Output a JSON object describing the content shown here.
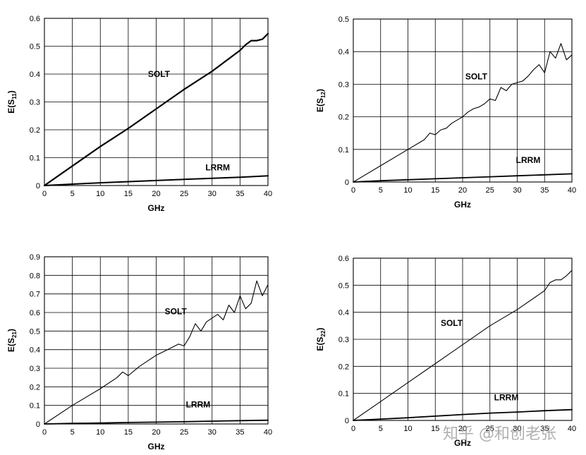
{
  "watermark": "知乎 @和创老张",
  "chart_data": [
    {
      "type": "line",
      "ylabel": "E(S11)",
      "xlabel": "GHz",
      "xlim": [
        0,
        40
      ],
      "ylim": [
        0,
        0.6
      ],
      "xticks": [
        "0",
        "5",
        "10",
        "15",
        "20",
        "25",
        "30",
        "35",
        "40"
      ],
      "yticks": [
        "0",
        "0.1",
        "0.2",
        "0.3",
        "0.4",
        "0.5",
        "0.6"
      ],
      "grid": true,
      "series": [
        {
          "name": "SOLT",
          "color": "#000000",
          "x": [
            0,
            5,
            10,
            15,
            20,
            25,
            30,
            35,
            36,
            37,
            38,
            39,
            40
          ],
          "y": [
            0,
            0.07,
            0.14,
            0.205,
            0.275,
            0.345,
            0.41,
            0.485,
            0.505,
            0.52,
            0.52,
            0.525,
            0.545
          ]
        },
        {
          "name": "LRRM",
          "color": "#000000",
          "x": [
            0,
            5,
            10,
            15,
            20,
            25,
            30,
            35,
            40
          ],
          "y": [
            0,
            0.005,
            0.01,
            0.014,
            0.018,
            0.022,
            0.026,
            0.03,
            0.035
          ]
        }
      ],
      "annotations": [
        {
          "text": "SOLT",
          "x": 20.5,
          "y": 0.39
        },
        {
          "text": "LRRM",
          "x": 31,
          "y": 0.055
        }
      ]
    },
    {
      "type": "line",
      "ylabel": "E(S12)",
      "xlabel": "GHz",
      "xlim": [
        0,
        40
      ],
      "ylim": [
        0,
        0.5
      ],
      "xticks": [
        "0",
        "5",
        "10",
        "15",
        "20",
        "25",
        "30",
        "35",
        "40"
      ],
      "yticks": [
        "0",
        "0.1",
        "0.2",
        "0.3",
        "0.4",
        "0.5"
      ],
      "grid": true,
      "series": [
        {
          "name": "SOLT",
          "color": "#000000",
          "x": [
            0,
            5,
            10,
            12,
            13,
            14,
            15,
            16,
            17,
            18,
            19,
            20,
            21,
            22,
            23,
            24,
            25,
            26,
            27,
            28,
            29,
            30,
            31,
            32,
            33,
            34,
            35,
            36,
            37,
            38,
            39,
            40
          ],
          "y": [
            0,
            0.05,
            0.1,
            0.12,
            0.13,
            0.15,
            0.145,
            0.16,
            0.165,
            0.18,
            0.19,
            0.2,
            0.215,
            0.225,
            0.23,
            0.24,
            0.255,
            0.25,
            0.29,
            0.28,
            0.3,
            0.305,
            0.31,
            0.325,
            0.345,
            0.36,
            0.335,
            0.4,
            0.38,
            0.425,
            0.375,
            0.39
          ]
        },
        {
          "name": "LRRM",
          "color": "#000000",
          "x": [
            0,
            5,
            10,
            15,
            20,
            25,
            30,
            35,
            40
          ],
          "y": [
            0,
            0.004,
            0.007,
            0.01,
            0.013,
            0.016,
            0.019,
            0.022,
            0.025
          ]
        }
      ],
      "annotations": [
        {
          "text": "SOLT",
          "x": 22.5,
          "y": 0.315
        },
        {
          "text": "LRRM",
          "x": 32,
          "y": 0.058
        }
      ]
    },
    {
      "type": "line",
      "ylabel": "E(S21)",
      "xlabel": "GHz",
      "xlim": [
        0,
        40
      ],
      "ylim": [
        0,
        0.9
      ],
      "xticks": [
        "0",
        "5",
        "10",
        "15",
        "20",
        "25",
        "30",
        "35",
        "40"
      ],
      "yticks": [
        "0",
        "0.1",
        "0.2",
        "0.3",
        "0.4",
        "0.5",
        "0.6",
        "0.7",
        "0.8",
        "0.9"
      ],
      "grid": true,
      "series": [
        {
          "name": "SOLT",
          "color": "#000000",
          "x": [
            0,
            5,
            10,
            13,
            14,
            15,
            17,
            20,
            22,
            24,
            25,
            26,
            27,
            28,
            29,
            30,
            31,
            32,
            33,
            34,
            35,
            36,
            37,
            38,
            39,
            40
          ],
          "y": [
            0,
            0.1,
            0.19,
            0.25,
            0.28,
            0.26,
            0.31,
            0.37,
            0.4,
            0.43,
            0.42,
            0.47,
            0.54,
            0.5,
            0.55,
            0.57,
            0.59,
            0.56,
            0.64,
            0.6,
            0.69,
            0.62,
            0.65,
            0.77,
            0.69,
            0.75
          ]
        },
        {
          "name": "LRRM",
          "color": "#000000",
          "x": [
            0,
            5,
            10,
            15,
            20,
            25,
            30,
            35,
            40
          ],
          "y": [
            0,
            0.003,
            0.005,
            0.008,
            0.01,
            0.012,
            0.015,
            0.018,
            0.02
          ]
        }
      ],
      "annotations": [
        {
          "text": "SOLT",
          "x": 23.5,
          "y": 0.59
        },
        {
          "text": "LRRM",
          "x": 27.5,
          "y": 0.09
        }
      ]
    },
    {
      "type": "line",
      "ylabel": "E(S22)",
      "xlabel": "GHz",
      "xlim": [
        0,
        40
      ],
      "ylim": [
        0,
        0.6
      ],
      "xticks": [
        "0",
        "5",
        "10",
        "15",
        "20",
        "25",
        "30",
        "35",
        "40"
      ],
      "yticks": [
        "0",
        "0.1",
        "0.2",
        "0.3",
        "0.4",
        "0.5",
        "0.6"
      ],
      "grid": true,
      "series": [
        {
          "name": "SOLT",
          "color": "#000000",
          "x": [
            0,
            5,
            10,
            15,
            20,
            25,
            30,
            35,
            36,
            37,
            38,
            39,
            40
          ],
          "y": [
            0,
            0.07,
            0.14,
            0.21,
            0.28,
            0.35,
            0.41,
            0.48,
            0.51,
            0.52,
            0.52,
            0.535,
            0.555
          ]
        },
        {
          "name": "LRRM",
          "color": "#000000",
          "x": [
            0,
            5,
            10,
            15,
            20,
            25,
            30,
            35,
            40
          ],
          "y": [
            0,
            0.005,
            0.01,
            0.016,
            0.022,
            0.027,
            0.031,
            0.036,
            0.04
          ]
        }
      ],
      "annotations": [
        {
          "text": "SOLT",
          "x": 18,
          "y": 0.35
        },
        {
          "text": "LRRM",
          "x": 28,
          "y": 0.075
        }
      ]
    }
  ]
}
